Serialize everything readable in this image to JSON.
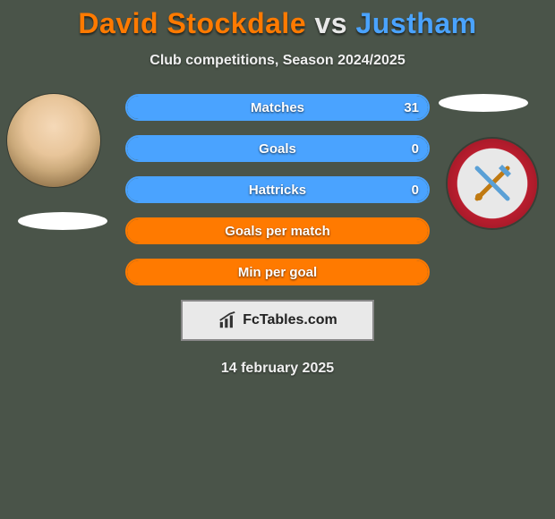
{
  "title": {
    "player1": "David Stockdale",
    "vs": "vs",
    "player2": "Justham"
  },
  "subtitle": "Club competitions, Season 2024/2025",
  "date": "14 february 2025",
  "brand": "FcTables.com",
  "colors": {
    "orange": "#ff7a00",
    "blue": "#4aa3ff",
    "bg": "#4a5449",
    "brand_box_bg": "#e9e9e9",
    "brand_box_border": "#888888"
  },
  "stats": [
    {
      "label": "Matches",
      "left_pct": 0,
      "right_pct": 100,
      "right_value": "31",
      "border": "blue"
    },
    {
      "label": "Goals",
      "left_pct": 0,
      "right_pct": 100,
      "right_value": "0",
      "border": "blue"
    },
    {
      "label": "Hattricks",
      "left_pct": 0,
      "right_pct": 100,
      "right_value": "0",
      "border": "blue"
    },
    {
      "label": "Goals per match",
      "left_pct": 100,
      "right_pct": 0,
      "right_value": "",
      "border": "orange"
    },
    {
      "label": "Min per goal",
      "left_pct": 100,
      "right_pct": 0,
      "right_value": "",
      "border": "orange"
    }
  ]
}
